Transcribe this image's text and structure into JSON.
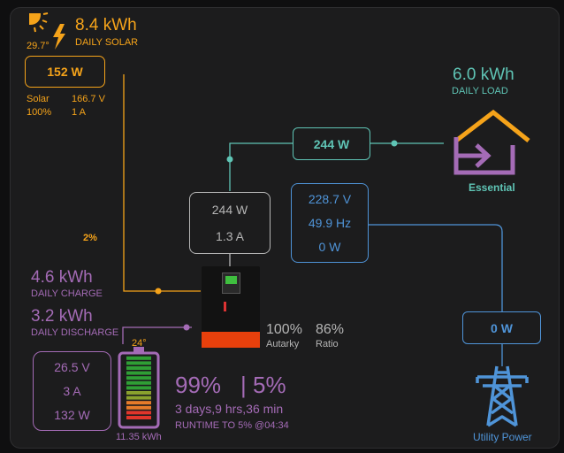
{
  "solar": {
    "daily_energy": "8.4 kWh",
    "daily_label": "DAILY SOLAR",
    "temperature": "29.7°",
    "power": "152 W",
    "mppt_label": "Solar",
    "voltage": "166.7 V",
    "percent": "100%",
    "current": "1 A"
  },
  "load": {
    "daily_energy": "6.0 kWh",
    "daily_label": "DAILY LOAD",
    "essential_power": "244 W",
    "essential_label": "Essential"
  },
  "inverter": {
    "power": "244 W",
    "current": "1.3 A",
    "temperature_pct": "2%"
  },
  "grid": {
    "voltage": "228.7 V",
    "frequency": "49.9 Hz",
    "power": "0 W",
    "utility_power": "0 W",
    "utility_label": "Utility Power"
  },
  "stats": {
    "autarky_value": "100%",
    "autarky_label": "Autarky",
    "ratio_value": "86%",
    "ratio_label": "Ratio"
  },
  "battery": {
    "daily_charge": "4.6 kWh",
    "daily_charge_label": "DAILY CHARGE",
    "daily_discharge": "3.2 kWh",
    "daily_discharge_label": "DAILY DISCHARGE",
    "voltage": "26.5 V",
    "current": "3 A",
    "power": "132 W",
    "temperature": "24°",
    "capacity": "11.35 kWh",
    "soc": "99%",
    "soc_fraction": 0.99,
    "min_soc": "| 5%",
    "runtime": "3 days,9 hrs,36 min",
    "runtime_to": "RUNTIME TO 5% @04:34"
  },
  "colors": {
    "solar": "#f5a31a",
    "load": "#5fc4b5",
    "grid": "#4f94d8",
    "battery": "#a46bb6",
    "inverter": "#b5b5b5"
  }
}
